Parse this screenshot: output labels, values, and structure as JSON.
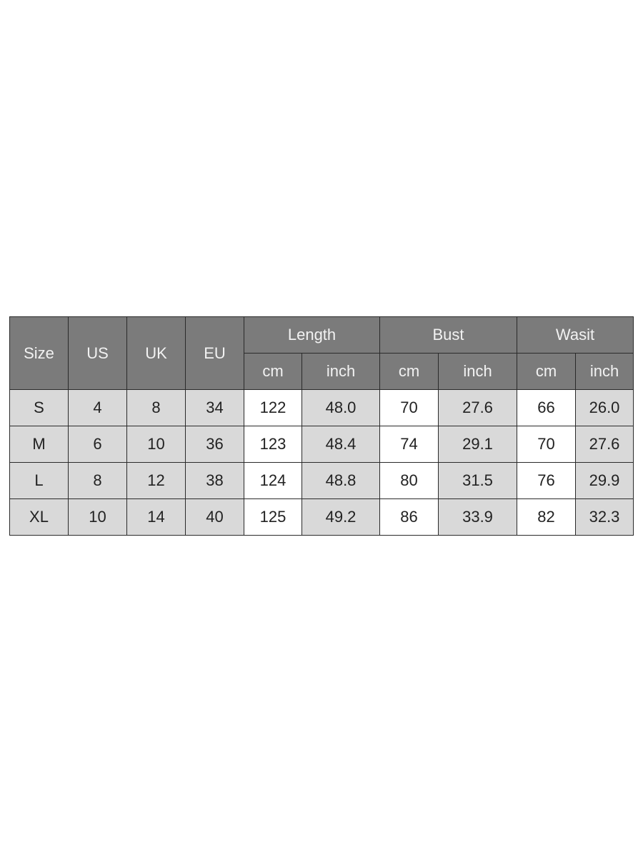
{
  "size_chart": {
    "headers": {
      "size": "Size",
      "us": "US",
      "uk": "UK",
      "eu": "EU",
      "groups": [
        "Length",
        "Bust",
        "Wasit"
      ],
      "units": [
        "cm",
        "inch",
        "cm",
        "inch",
        "cm",
        "inch"
      ]
    },
    "rows": [
      [
        "S",
        "4",
        "8",
        "34",
        "122",
        "48.0",
        "70",
        "27.6",
        "66",
        "26.0"
      ],
      [
        "M",
        "6",
        "10",
        "36",
        "123",
        "48.4",
        "74",
        "29.1",
        "70",
        "27.6"
      ],
      [
        "L",
        "8",
        "12",
        "38",
        "124",
        "48.8",
        "80",
        "31.5",
        "76",
        "29.9"
      ],
      [
        "XL",
        "10",
        "14",
        "40",
        "125",
        "49.2",
        "86",
        "33.9",
        "82",
        "32.3"
      ]
    ],
    "colors": {
      "header": "#7b7b7b",
      "shaded_cell": "#d9d9d9",
      "white_cell": "#ffffff"
    }
  }
}
